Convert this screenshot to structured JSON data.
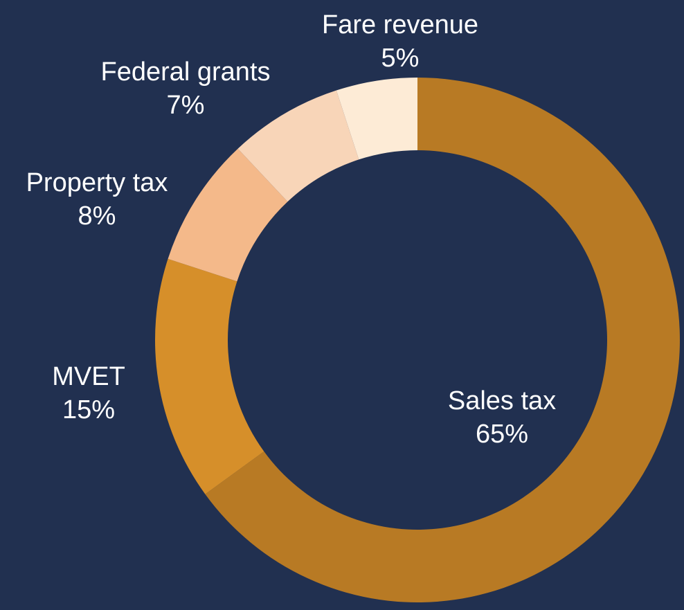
{
  "chart_data": {
    "type": "donut",
    "categories": [
      "Sales tax",
      "MVET",
      "Property tax",
      "Federal grants",
      "Fare revenue"
    ],
    "values": [
      65,
      15,
      8,
      7,
      5
    ],
    "value_labels": [
      "65%",
      "15%",
      "8%",
      "7%",
      "5%"
    ],
    "colors": [
      "#b87a24",
      "#d68f2a",
      "#f4b98a",
      "#f8d5b8",
      "#fdebd6"
    ]
  }
}
